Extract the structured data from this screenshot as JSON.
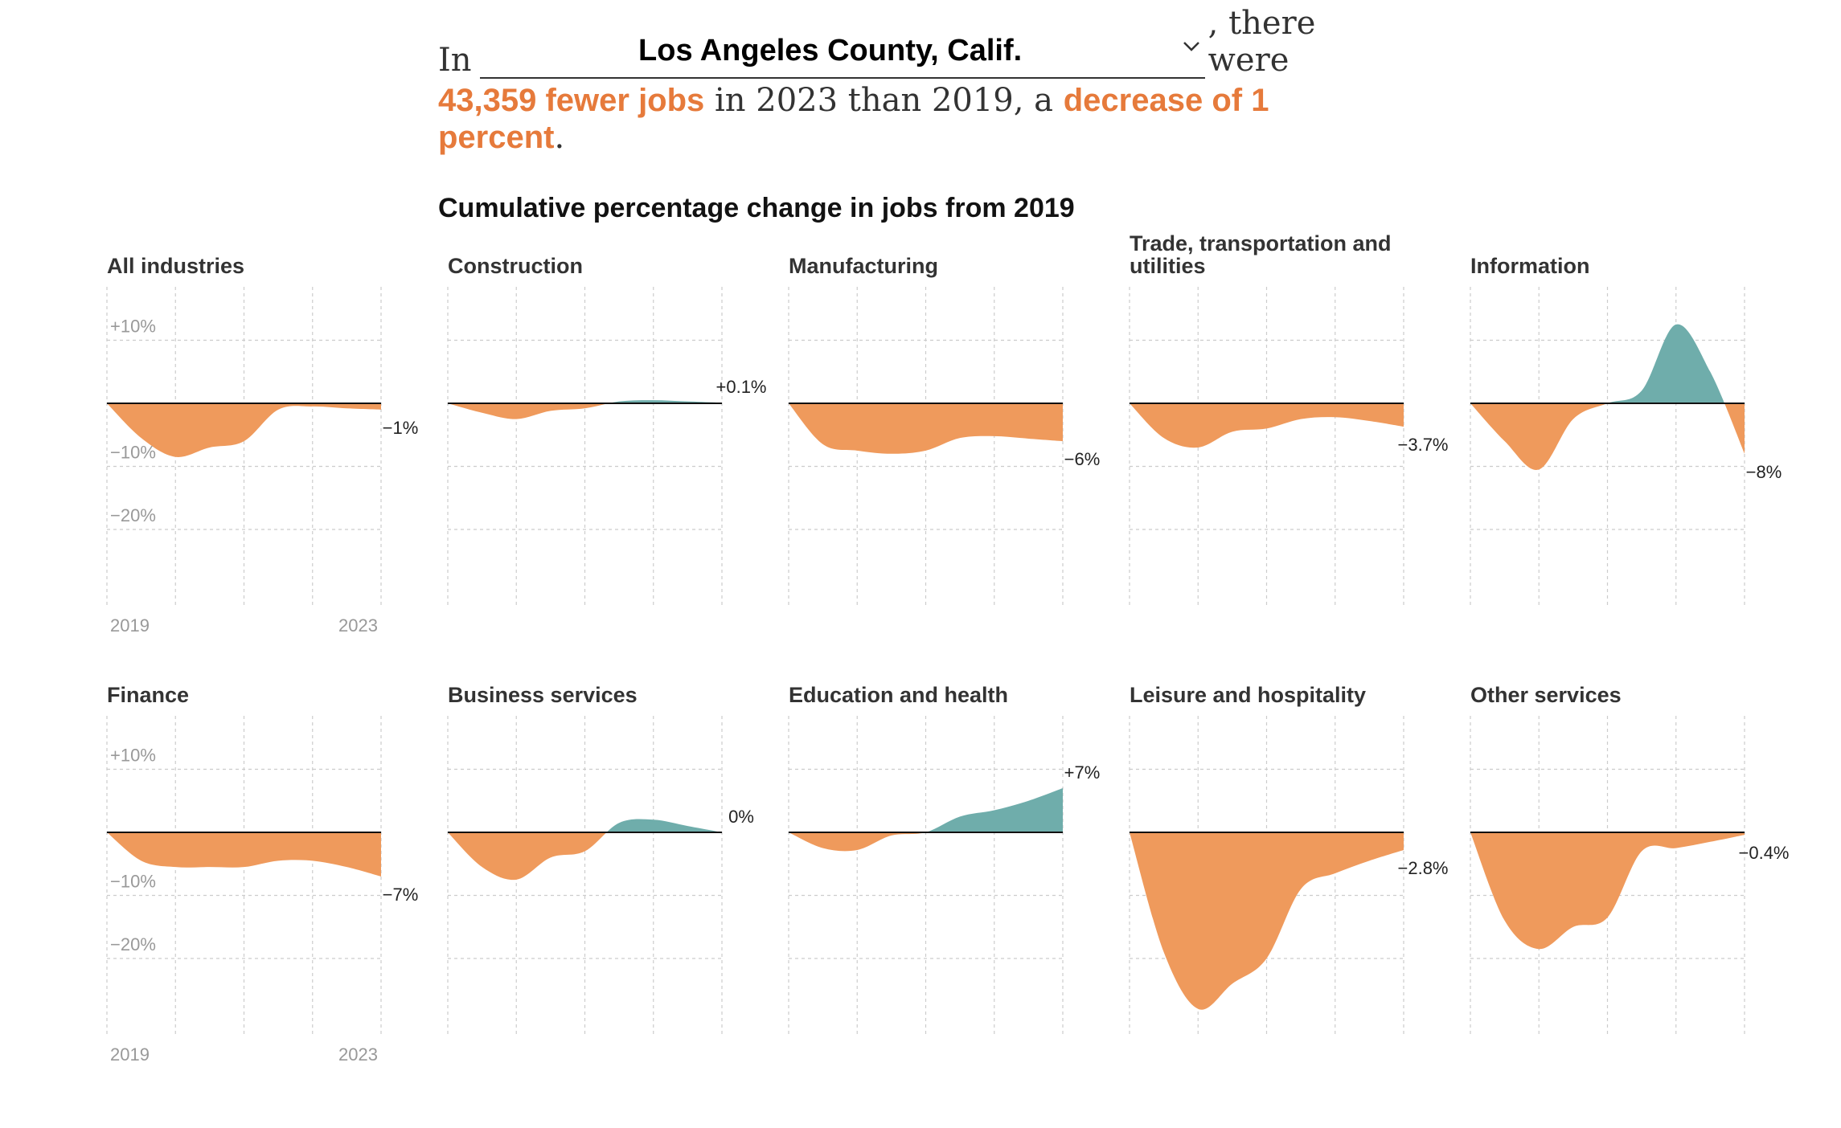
{
  "intro": {
    "prefix": "In",
    "county": "Los Angeles County, Calif.",
    "suffix": ", there were",
    "jobs_change": "43,359 fewer jobs",
    "middle": " in 2023 than 2019, a ",
    "pct_change": "decrease of 1 percent",
    "end": "."
  },
  "colors": {
    "decline": "#ef9a5c",
    "growth": "#6fadab",
    "highlight": "#e67a3b",
    "zero_line": "#111111",
    "grid": "#cccccc",
    "axis_text": "#999999"
  },
  "chart_data": {
    "type": "area",
    "title": "Cumulative percentage change in jobs from 2019",
    "x_ticks": [
      "2019",
      "2023"
    ],
    "y_ticks": [
      "+10%",
      "−10%",
      "−20%"
    ],
    "grid": true,
    "series_x": [
      2019,
      2019.5,
      2020,
      2020.5,
      2021,
      2021.5,
      2022,
      2022.5,
      2023
    ],
    "charts": [
      {
        "name": "All industries",
        "end_label": "−1%",
        "values": [
          0,
          -5.5,
          -8.5,
          -7,
          -6,
          -1,
          -0.5,
          -0.8,
          -1
        ]
      },
      {
        "name": "Construction",
        "end_label": "+0.1%",
        "values": [
          0,
          -1.5,
          -2.5,
          -1.2,
          -0.8,
          0.3,
          0.5,
          0.3,
          0.1
        ]
      },
      {
        "name": "Manufacturing",
        "end_label": "−6%",
        "values": [
          0,
          -6.5,
          -7.5,
          -8,
          -7.5,
          -5.5,
          -5.2,
          -5.6,
          -6
        ]
      },
      {
        "name": "Trade, transportation and utilities",
        "end_label": "−3.7%",
        "values": [
          0,
          -5.5,
          -7,
          -4.5,
          -4,
          -2.5,
          -2.2,
          -2.8,
          -3.7
        ]
      },
      {
        "name": "Information",
        "end_label": "−8%",
        "values": [
          0,
          -6,
          -10.5,
          -2.5,
          0,
          2,
          12.5,
          5,
          -8
        ]
      },
      {
        "name": "Finance",
        "end_label": "−7%",
        "values": [
          0,
          -4.5,
          -5.5,
          -5.5,
          -5.5,
          -4.5,
          -4.5,
          -5.5,
          -7
        ]
      },
      {
        "name": "Business services",
        "end_label": "0%",
        "values": [
          0,
          -5.5,
          -7.5,
          -4,
          -3,
          1.5,
          2,
          1,
          0
        ]
      },
      {
        "name": "Education and health",
        "end_label": "+7%",
        "values": [
          0,
          -2.5,
          -2.8,
          -0.5,
          0,
          2.5,
          3.5,
          5,
          7
        ]
      },
      {
        "name": "Leisure and hospitality",
        "end_label": "−2.8%",
        "values": [
          0,
          -19,
          -28,
          -24,
          -20,
          -9,
          -6.5,
          -4.5,
          -2.8
        ]
      },
      {
        "name": "Other services",
        "end_label": "−0.4%",
        "values": [
          0,
          -14,
          -18.5,
          -15,
          -13.5,
          -3,
          -2.5,
          -1.5,
          -0.4
        ]
      }
    ]
  }
}
